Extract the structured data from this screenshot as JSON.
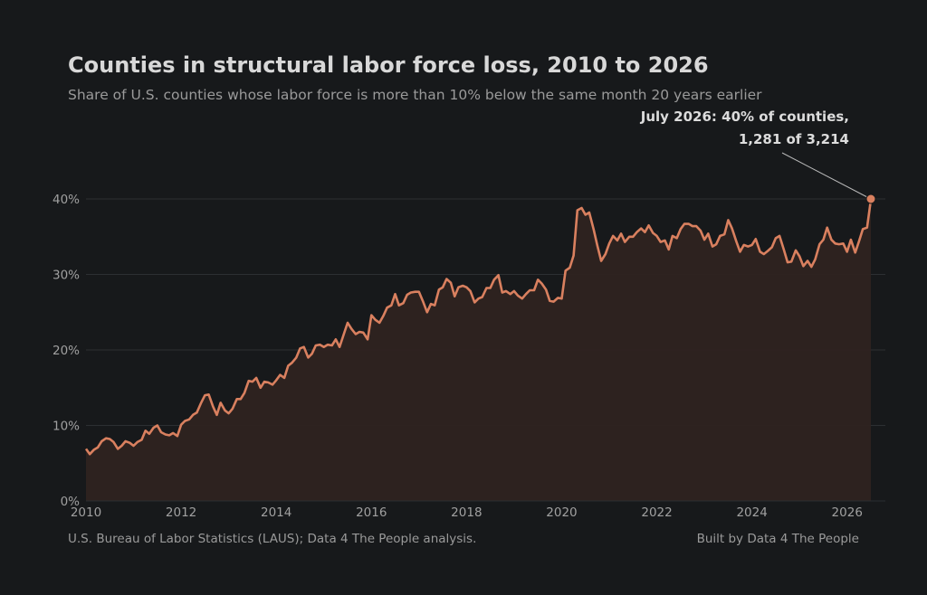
{
  "header": {
    "title": "Counties in structural labor force loss, 2010 to 2026",
    "subtitle": "Share of U.S. counties whose labor force is more than 10% below the same month 20 years earlier"
  },
  "footer": {
    "source": "U.S. Bureau of Labor Statistics (LAUS); Data 4 The People analysis.",
    "credit": "Built by Data 4 The People"
  },
  "colors": {
    "background": "#17191b",
    "line": "#d9805f",
    "fill": "#2e2320",
    "grid": "#2c2f32"
  },
  "chart_data": {
    "type": "area",
    "xlabel": "",
    "ylabel": "",
    "xlim": [
      2010,
      2026.85
    ],
    "ylim": [
      0,
      40
    ],
    "x_ticks": [
      2010,
      2012,
      2014,
      2016,
      2018,
      2020,
      2022,
      2024,
      2026
    ],
    "x_tick_labels": [
      "2010",
      "2012",
      "2014",
      "2016",
      "2018",
      "2020",
      "2022",
      "2024",
      "2026"
    ],
    "y_ticks": [
      0,
      10,
      20,
      30,
      40
    ],
    "y_tick_labels": [
      "0%",
      "10%",
      "20%",
      "30%",
      "40%"
    ],
    "grid": "horizontal",
    "points": [
      [
        2010.0,
        6.9
      ],
      [
        2010.08,
        6.2
      ],
      [
        2010.17,
        6.8
      ],
      [
        2010.25,
        7.1
      ],
      [
        2010.33,
        7.9
      ],
      [
        2010.42,
        8.3
      ],
      [
        2010.5,
        8.2
      ],
      [
        2010.58,
        7.8
      ],
      [
        2010.67,
        6.9
      ],
      [
        2010.75,
        7.3
      ],
      [
        2010.83,
        7.9
      ],
      [
        2010.92,
        7.7
      ],
      [
        2011.0,
        7.3
      ],
      [
        2011.08,
        7.8
      ],
      [
        2011.17,
        8.1
      ],
      [
        2011.25,
        9.3
      ],
      [
        2011.33,
        8.9
      ],
      [
        2011.42,
        9.7
      ],
      [
        2011.5,
        10.0
      ],
      [
        2011.58,
        9.1
      ],
      [
        2011.67,
        8.8
      ],
      [
        2011.75,
        8.7
      ],
      [
        2011.83,
        9.0
      ],
      [
        2011.92,
        8.6
      ],
      [
        2012.0,
        10.1
      ],
      [
        2012.08,
        10.6
      ],
      [
        2012.17,
        10.8
      ],
      [
        2012.25,
        11.4
      ],
      [
        2012.33,
        11.7
      ],
      [
        2012.42,
        13.0
      ],
      [
        2012.5,
        14.0
      ],
      [
        2012.58,
        14.1
      ],
      [
        2012.67,
        12.5
      ],
      [
        2012.75,
        11.4
      ],
      [
        2012.83,
        13.0
      ],
      [
        2012.92,
        12.0
      ],
      [
        2013.0,
        11.6
      ],
      [
        2013.08,
        12.2
      ],
      [
        2013.17,
        13.5
      ],
      [
        2013.25,
        13.5
      ],
      [
        2013.33,
        14.3
      ],
      [
        2013.42,
        15.9
      ],
      [
        2013.5,
        15.8
      ],
      [
        2013.58,
        16.3
      ],
      [
        2013.67,
        15.0
      ],
      [
        2013.75,
        15.8
      ],
      [
        2013.83,
        15.7
      ],
      [
        2013.92,
        15.4
      ],
      [
        2014.0,
        16.0
      ],
      [
        2014.08,
        16.7
      ],
      [
        2014.17,
        16.3
      ],
      [
        2014.25,
        17.9
      ],
      [
        2014.33,
        18.3
      ],
      [
        2014.42,
        19.0
      ],
      [
        2014.5,
        20.2
      ],
      [
        2014.58,
        20.4
      ],
      [
        2014.67,
        19.0
      ],
      [
        2014.75,
        19.5
      ],
      [
        2014.83,
        20.6
      ],
      [
        2014.92,
        20.7
      ],
      [
        2015.0,
        20.4
      ],
      [
        2015.08,
        20.7
      ],
      [
        2015.17,
        20.6
      ],
      [
        2015.25,
        21.4
      ],
      [
        2015.33,
        20.4
      ],
      [
        2015.42,
        22.1
      ],
      [
        2015.5,
        23.6
      ],
      [
        2015.58,
        22.8
      ],
      [
        2015.67,
        22.1
      ],
      [
        2015.75,
        22.4
      ],
      [
        2015.83,
        22.3
      ],
      [
        2015.92,
        21.4
      ],
      [
        2016.0,
        24.6
      ],
      [
        2016.08,
        24.0
      ],
      [
        2016.17,
        23.6
      ],
      [
        2016.25,
        24.5
      ],
      [
        2016.33,
        25.6
      ],
      [
        2016.42,
        25.9
      ],
      [
        2016.5,
        27.4
      ],
      [
        2016.58,
        25.9
      ],
      [
        2016.67,
        26.2
      ],
      [
        2016.75,
        27.3
      ],
      [
        2016.83,
        27.6
      ],
      [
        2016.92,
        27.7
      ],
      [
        2017.0,
        27.7
      ],
      [
        2017.08,
        26.5
      ],
      [
        2017.17,
        25.0
      ],
      [
        2017.25,
        26.1
      ],
      [
        2017.33,
        25.9
      ],
      [
        2017.42,
        28.0
      ],
      [
        2017.5,
        28.3
      ],
      [
        2017.58,
        29.4
      ],
      [
        2017.67,
        28.9
      ],
      [
        2017.75,
        27.1
      ],
      [
        2017.83,
        28.3
      ],
      [
        2017.92,
        28.5
      ],
      [
        2018.0,
        28.3
      ],
      [
        2018.08,
        27.8
      ],
      [
        2018.17,
        26.3
      ],
      [
        2018.25,
        26.8
      ],
      [
        2018.33,
        27.0
      ],
      [
        2018.42,
        28.2
      ],
      [
        2018.5,
        28.2
      ],
      [
        2018.58,
        29.3
      ],
      [
        2018.67,
        29.9
      ],
      [
        2018.75,
        27.6
      ],
      [
        2018.83,
        27.8
      ],
      [
        2018.92,
        27.4
      ],
      [
        2019.0,
        27.8
      ],
      [
        2019.08,
        27.2
      ],
      [
        2019.17,
        26.8
      ],
      [
        2019.25,
        27.4
      ],
      [
        2019.33,
        27.9
      ],
      [
        2019.42,
        27.9
      ],
      [
        2019.5,
        29.3
      ],
      [
        2019.58,
        28.8
      ],
      [
        2019.67,
        28.0
      ],
      [
        2019.75,
        26.5
      ],
      [
        2019.83,
        26.4
      ],
      [
        2019.92,
        26.9
      ],
      [
        2020.0,
        26.8
      ],
      [
        2020.08,
        30.5
      ],
      [
        2020.17,
        30.9
      ],
      [
        2020.25,
        32.5
      ],
      [
        2020.33,
        38.5
      ],
      [
        2020.42,
        38.8
      ],
      [
        2020.5,
        37.9
      ],
      [
        2020.58,
        38.2
      ],
      [
        2020.67,
        36.0
      ],
      [
        2020.75,
        33.8
      ],
      [
        2020.83,
        31.8
      ],
      [
        2020.92,
        32.7
      ],
      [
        2021.0,
        34.1
      ],
      [
        2021.08,
        35.1
      ],
      [
        2021.17,
        34.5
      ],
      [
        2021.25,
        35.4
      ],
      [
        2021.33,
        34.3
      ],
      [
        2021.42,
        35.0
      ],
      [
        2021.5,
        35.0
      ],
      [
        2021.58,
        35.6
      ],
      [
        2021.67,
        36.1
      ],
      [
        2021.75,
        35.6
      ],
      [
        2021.83,
        36.5
      ],
      [
        2021.92,
        35.5
      ],
      [
        2022.0,
        35.1
      ],
      [
        2022.08,
        34.3
      ],
      [
        2022.17,
        34.5
      ],
      [
        2022.25,
        33.3
      ],
      [
        2022.33,
        35.1
      ],
      [
        2022.42,
        34.8
      ],
      [
        2022.5,
        36.0
      ],
      [
        2022.58,
        36.7
      ],
      [
        2022.67,
        36.7
      ],
      [
        2022.75,
        36.4
      ],
      [
        2022.83,
        36.4
      ],
      [
        2022.92,
        35.8
      ],
      [
        2023.0,
        34.6
      ],
      [
        2023.08,
        35.4
      ],
      [
        2023.17,
        33.7
      ],
      [
        2023.25,
        34.0
      ],
      [
        2023.33,
        35.1
      ],
      [
        2023.42,
        35.3
      ],
      [
        2023.5,
        37.2
      ],
      [
        2023.58,
        36.1
      ],
      [
        2023.67,
        34.4
      ],
      [
        2023.75,
        33.0
      ],
      [
        2023.83,
        33.9
      ],
      [
        2023.92,
        33.7
      ],
      [
        2024.0,
        33.9
      ],
      [
        2024.08,
        34.7
      ],
      [
        2024.17,
        33.0
      ],
      [
        2024.25,
        32.7
      ],
      [
        2024.33,
        33.1
      ],
      [
        2024.42,
        33.6
      ],
      [
        2024.5,
        34.8
      ],
      [
        2024.58,
        35.1
      ],
      [
        2024.67,
        33.3
      ],
      [
        2024.75,
        31.6
      ],
      [
        2024.83,
        31.7
      ],
      [
        2024.92,
        33.2
      ],
      [
        2025.0,
        32.4
      ],
      [
        2025.08,
        31.1
      ],
      [
        2025.17,
        31.8
      ],
      [
        2025.25,
        31.0
      ],
      [
        2025.33,
        32.0
      ],
      [
        2025.42,
        34.0
      ],
      [
        2025.5,
        34.6
      ],
      [
        2025.58,
        36.2
      ],
      [
        2025.67,
        34.6
      ],
      [
        2025.75,
        34.1
      ],
      [
        2025.83,
        34.0
      ],
      [
        2025.92,
        34.1
      ],
      [
        2026.0,
        33.0
      ],
      [
        2026.08,
        34.6
      ],
      [
        2026.17,
        32.9
      ],
      [
        2026.25,
        34.4
      ],
      [
        2026.33,
        36.0
      ],
      [
        2026.42,
        36.2
      ],
      [
        2026.5,
        39.9
      ]
    ],
    "highlight": {
      "x": 2026.5,
      "y": 40
    },
    "annotation": {
      "line1": "July 2026: 40% of counties,",
      "line2": "1,281 of 3,214"
    }
  }
}
